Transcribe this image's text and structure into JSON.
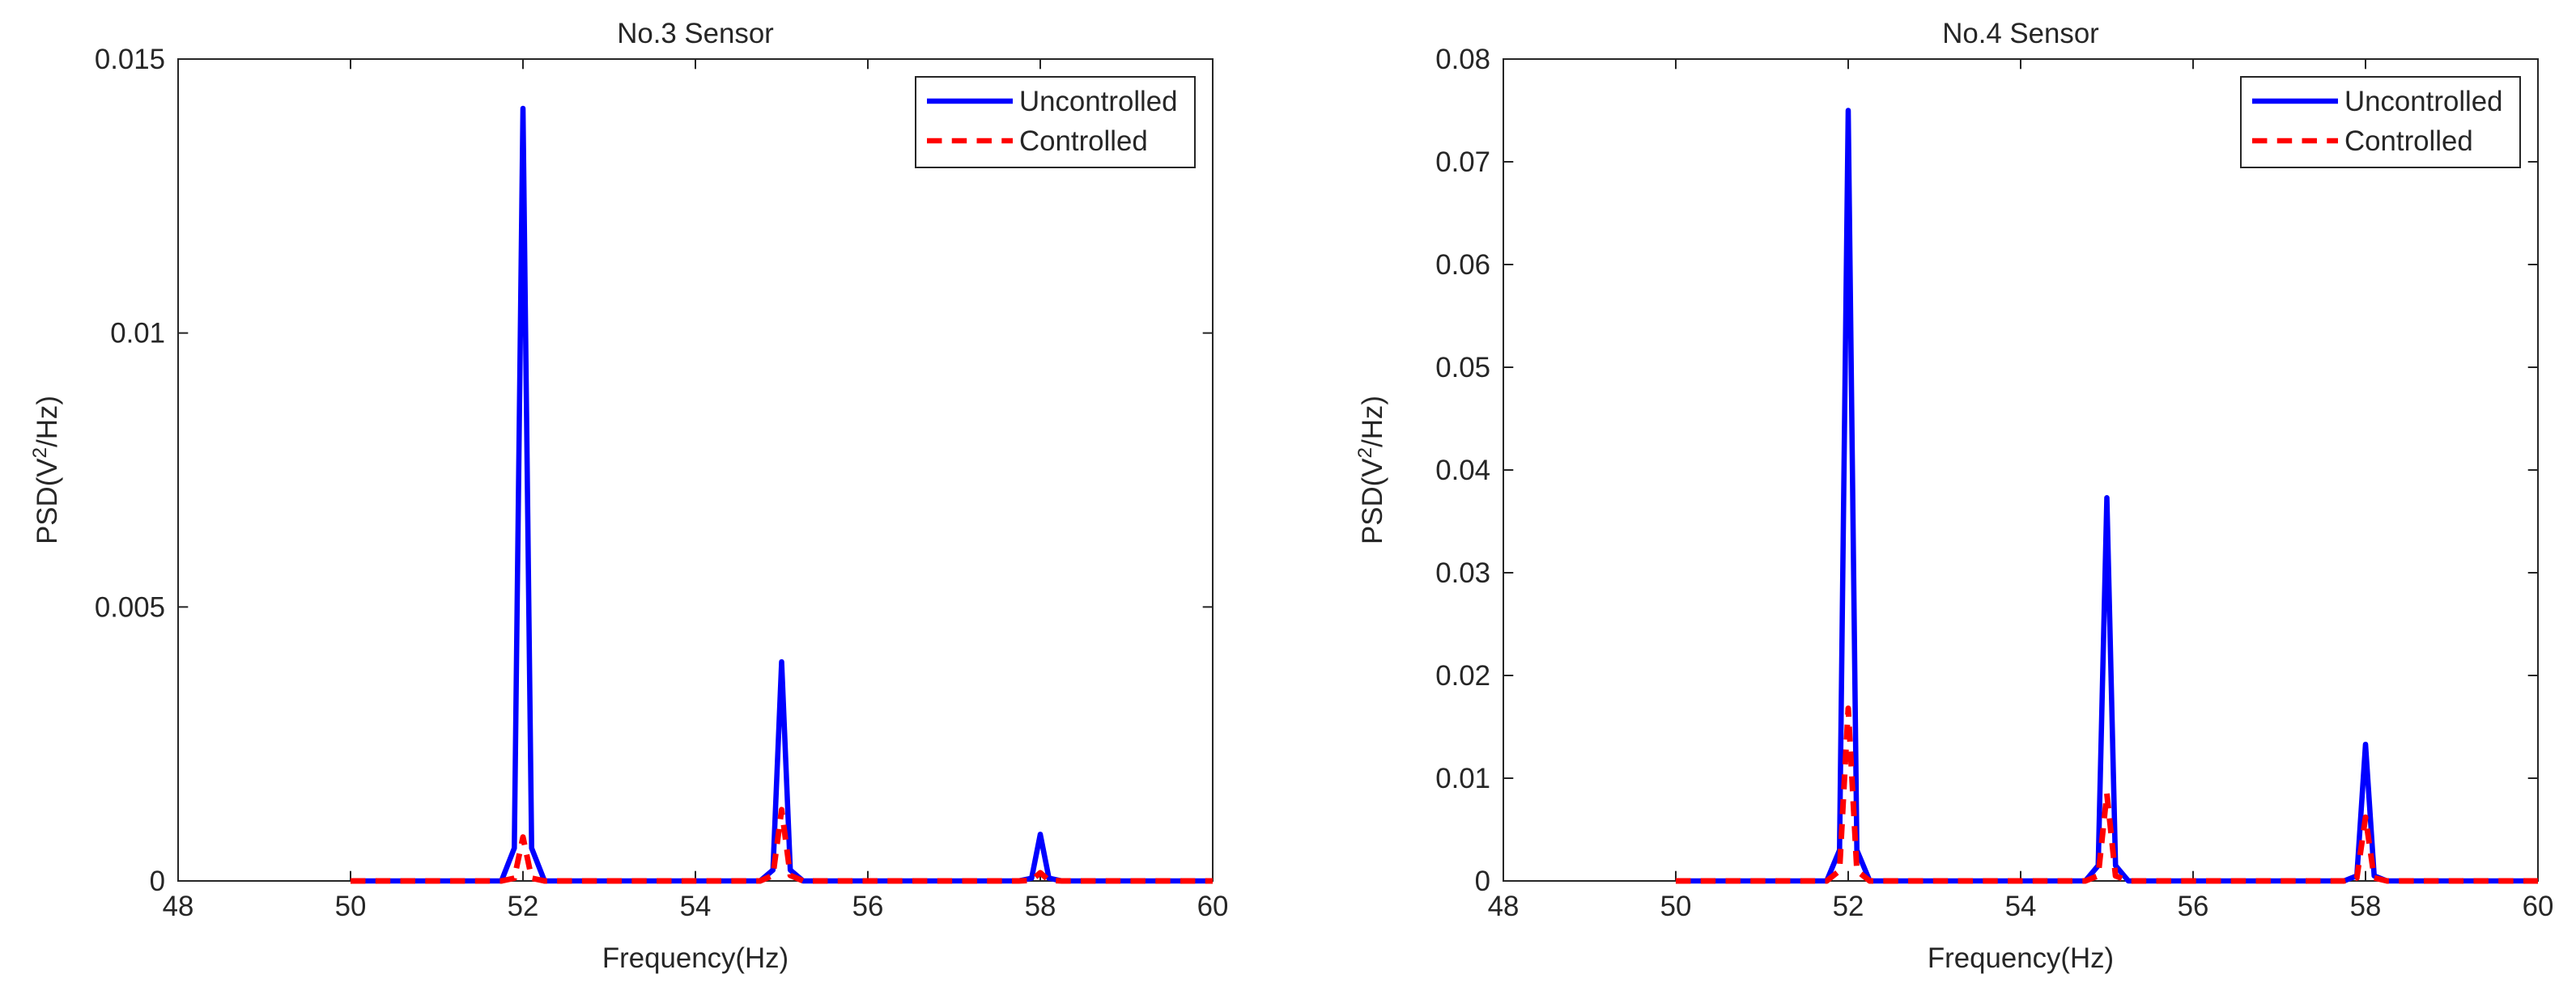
{
  "colors": {
    "uncontrolled": "#0000ff",
    "controlled": "#ff0000",
    "axis": "#262626",
    "background": "#ffffff"
  },
  "chart_data": [
    {
      "type": "line",
      "title": "No.3 Sensor",
      "xlabel": "Frequency(Hz)",
      "ylabel": "PSD(V2/Hz)",
      "ylabel_parts": {
        "pre": "PSD(V",
        "sup": "2",
        "post": "/Hz)"
      },
      "xlim": [
        48,
        60
      ],
      "ylim": [
        0,
        0.015
      ],
      "xticks": [
        48,
        50,
        52,
        54,
        56,
        58,
        60
      ],
      "xtick_labels": [
        "48",
        "50",
        "52",
        "54",
        "56",
        "58",
        "60"
      ],
      "yticks": [
        0,
        0.005,
        0.01,
        0.015
      ],
      "ytick_labels": [
        "0",
        "0.005",
        "0.01",
        "0.015"
      ],
      "grid": false,
      "legend_position": "top-right",
      "x": [
        50,
        51.75,
        51.9,
        52,
        52.1,
        52.25,
        54.75,
        54.9,
        55,
        55.1,
        55.25,
        57.75,
        57.9,
        58,
        58.1,
        58.25,
        60
      ],
      "series": [
        {
          "name": "Uncontrolled",
          "style": "solid",
          "values": [
            0,
            0,
            0.0006,
            0.0141,
            0.0006,
            0,
            0,
            0.0002,
            0.004,
            0.0002,
            0,
            0,
            5e-05,
            0.00085,
            5e-05,
            0,
            0
          ]
        },
        {
          "name": "Controlled",
          "style": "dashed",
          "values": [
            0,
            0,
            5e-05,
            0.0008,
            5e-05,
            0,
            0,
            0.0001,
            0.0013,
            0.0001,
            0,
            0,
            1e-05,
            0.00015,
            1e-05,
            0,
            0
          ]
        }
      ]
    },
    {
      "type": "line",
      "title": "No.4 Sensor",
      "xlabel": "Frequency(Hz)",
      "ylabel": "PSD(V2/Hz)",
      "ylabel_parts": {
        "pre": "PSD(V",
        "sup": "2",
        "post": "/Hz)"
      },
      "xlim": [
        48,
        60
      ],
      "ylim": [
        0,
        0.08
      ],
      "xticks": [
        48,
        50,
        52,
        54,
        56,
        58,
        60
      ],
      "xtick_labels": [
        "48",
        "50",
        "52",
        "54",
        "56",
        "58",
        "60"
      ],
      "yticks": [
        0,
        0.01,
        0.02,
        0.03,
        0.04,
        0.05,
        0.06,
        0.07,
        0.08
      ],
      "ytick_labels": [
        "0",
        "0.01",
        "0.02",
        "0.03",
        "0.04",
        "0.05",
        "0.06",
        "0.07",
        "0.08"
      ],
      "grid": false,
      "legend_position": "top-right",
      "x": [
        50,
        51.75,
        51.9,
        52,
        52.1,
        52.25,
        54.75,
        54.9,
        55,
        55.1,
        55.25,
        57.75,
        57.9,
        58,
        58.1,
        58.25,
        60
      ],
      "series": [
        {
          "name": "Uncontrolled",
          "style": "solid",
          "values": [
            0,
            0,
            0.003,
            0.075,
            0.003,
            0,
            0,
            0.0015,
            0.0373,
            0.0015,
            0,
            0,
            0.0005,
            0.0133,
            0.0005,
            0,
            0
          ]
        },
        {
          "name": "Controlled",
          "style": "dashed",
          "values": [
            0,
            0,
            0.001,
            0.0168,
            0.001,
            0,
            0,
            0.0005,
            0.0085,
            0.0005,
            0,
            0,
            0.0003,
            0.0062,
            0.0003,
            0,
            0
          ]
        }
      ]
    }
  ]
}
